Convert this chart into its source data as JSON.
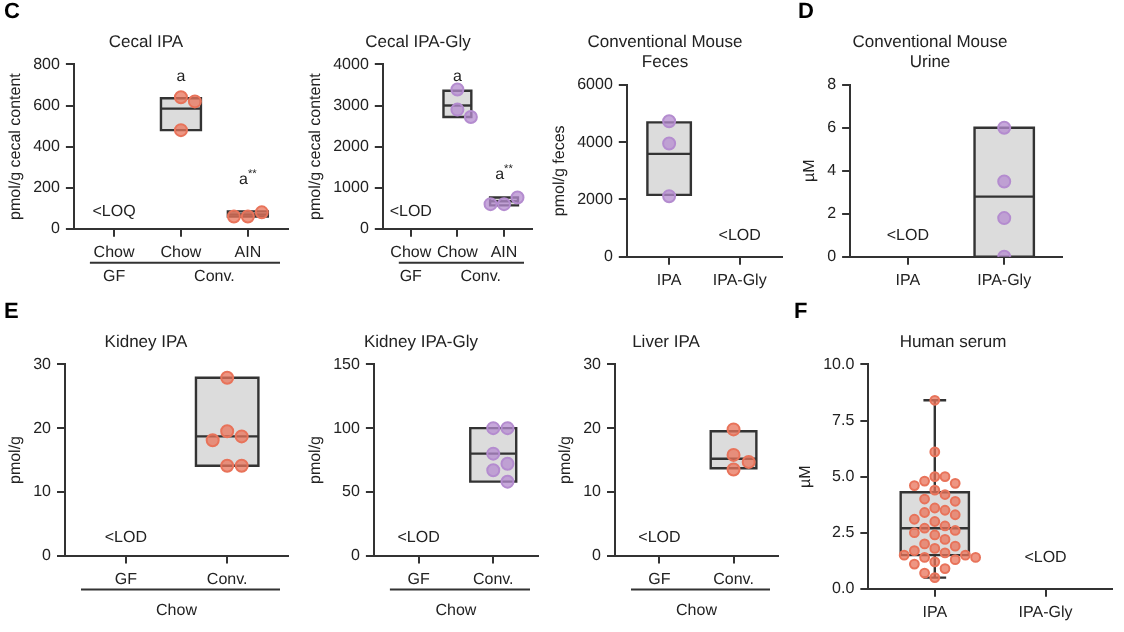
{
  "chart_data": [
    {
      "type": "box",
      "title": "Cecal IPA",
      "ylabel": "pmol/g cecal content",
      "categories": [
        "Chow",
        "Chow",
        "AIN"
      ],
      "ylim": [
        0,
        800
      ],
      "yticks": [
        0,
        200,
        400,
        600,
        800
      ],
      "marker": "circle",
      "boxes": [
        null,
        {
          "low": 480,
          "q1": 480,
          "median": 585,
          "q3": 635,
          "high": 635
        },
        {
          "low": 60,
          "q1": 60,
          "median": 70,
          "q3": 85,
          "high": 85
        }
      ],
      "series": [
        {
          "type": "scatter",
          "color": "#e8735a",
          "values": [
            null,
            640,
            60
          ]
        },
        {
          "type": "scatter",
          "color": "#e8735a",
          "values": [
            null,
            620,
            80
          ]
        },
        {
          "type": "scatter",
          "color": "#e8735a",
          "values": [
            null,
            480,
            60
          ]
        }
      ],
      "annotations": [
        "C",
        "GF",
        "Conv.",
        "a",
        "a$^{**}$",
        "<LOQ"
      ]
    },
    {
      "type": "box",
      "title": "Cecal IPA-Gly",
      "ylabel": "pmol/g cecal content",
      "categories": [
        "Chow",
        "Chow",
        "AIN"
      ],
      "ylim": [
        0,
        4000
      ],
      "yticks": [
        0,
        1000,
        2000,
        3000,
        4000
      ],
      "marker": "circle",
      "boxes": [
        null,
        {
          "low": 2720,
          "q1": 2720,
          "median": 3000,
          "q3": 3360,
          "high": 3360
        },
        {
          "low": 570,
          "q1": 570,
          "median": 670,
          "q3": 760,
          "high": 760
        }
      ],
      "series": [
        {
          "type": "scatter",
          "color": "#b48ccf",
          "values": [
            null,
            3390,
            600
          ]
        },
        {
          "type": "scatter",
          "color": "#b48ccf",
          "values": [
            null,
            2900,
            760
          ]
        },
        {
          "type": "scatter",
          "color": "#b48ccf",
          "values": [
            null,
            2720,
            600
          ]
        }
      ],
      "annotations": [
        "GF",
        "Conv.",
        "a",
        "a$^{**}$",
        "<LOD"
      ]
    },
    {
      "type": "box",
      "title": "Conventional Mouse Feces",
      "ylabel": "pmol/g feces",
      "categories": [
        "IPA",
        "IPA-Gly"
      ],
      "ylim": [
        0,
        6000
      ],
      "yticks": [
        0,
        2000,
        4000,
        6000
      ],
      "marker": "circle",
      "boxes": [
        {
          "low": 2160,
          "q1": 2160,
          "median": 3590,
          "q3": 4690,
          "high": 4690
        },
        null
      ],
      "series": [
        {
          "type": "scatter",
          "color": "#b48ccf",
          "x": [
            "IPA",
            "IPA",
            "IPA"
          ],
          "values": [
            4730,
            3950,
            2110
          ]
        }
      ],
      "annotations": [
        "<LOD"
      ]
    },
    {
      "type": "box",
      "title": "Conventional Mouse Urine",
      "ylabel": "µM",
      "categories": [
        "IPA",
        "IPA-Gly"
      ],
      "ylim": [
        0,
        8
      ],
      "yticks": [
        0,
        2,
        4,
        6,
        8
      ],
      "marker": "circle",
      "boxes": [
        null,
        {
          "low": 0,
          "q1": 0,
          "median": 2.8,
          "q3": 6.0,
          "high": 6.0
        }
      ],
      "series": [
        {
          "type": "scatter",
          "color": "#b48ccf",
          "x": [
            "IPA-Gly",
            "IPA-Gly",
            "IPA-Gly",
            "IPA-Gly"
          ],
          "values": [
            6.0,
            3.5,
            1.8,
            0.0
          ]
        }
      ],
      "annotations": [
        "D",
        "<LOD"
      ]
    },
    {
      "type": "box",
      "title": "Kidney IPA",
      "ylabel": "pmol/g",
      "xlabel": "Chow",
      "categories": [
        "GF",
        "Conv."
      ],
      "ylim": [
        0,
        30
      ],
      "yticks": [
        0,
        10,
        20,
        30
      ],
      "marker": "circle",
      "boxes": [
        null,
        {
          "low": 14.1,
          "q1": 14.1,
          "median": 18.7,
          "q3": 27.9,
          "high": 27.9
        }
      ],
      "series": [
        {
          "type": "scatter",
          "color": "#e8735a",
          "x": [
            "Conv.",
            "Conv.",
            "Conv.",
            "Conv.",
            "Conv.",
            "Conv."
          ],
          "values": [
            27.9,
            19.5,
            18.7,
            18.1,
            14.1,
            14.1
          ]
        }
      ],
      "annotations": [
        "E",
        "<LOD"
      ]
    },
    {
      "type": "box",
      "title": "Kidney IPA-Gly",
      "ylabel": "pmol/g",
      "xlabel": "Chow",
      "categories": [
        "GF",
        "Conv."
      ],
      "ylim": [
        0,
        150
      ],
      "yticks": [
        0,
        50,
        100,
        150
      ],
      "marker": "circle",
      "boxes": [
        null,
        {
          "low": 58,
          "q1": 58,
          "median": 80,
          "q3": 100,
          "high": 100
        }
      ],
      "series": [
        {
          "type": "scatter",
          "color": "#b48ccf",
          "x": [
            "Conv.",
            "Conv.",
            "Conv.",
            "Conv.",
            "Conv.",
            "Conv."
          ],
          "values": [
            100,
            100,
            80,
            72,
            67,
            58
          ]
        }
      ],
      "annotations": [
        "<LOD"
      ]
    },
    {
      "type": "box",
      "title": "Liver IPA",
      "ylabel": "pmol/g",
      "xlabel": "Chow",
      "categories": [
        "GF",
        "Conv."
      ],
      "ylim": [
        0,
        30
      ],
      "yticks": [
        0,
        10,
        20,
        30
      ],
      "marker": "circle",
      "boxes": [
        null,
        {
          "low": 13.7,
          "q1": 13.7,
          "median": 15.2,
          "q3": 19.5,
          "high": 19.5
        }
      ],
      "series": [
        {
          "type": "scatter",
          "color": "#e8735a",
          "x": [
            "Conv.",
            "Conv.",
            "Conv.",
            "Conv."
          ],
          "values": [
            19.8,
            15.8,
            14.7,
            13.5
          ]
        }
      ],
      "annotations": [
        "<LOD"
      ]
    },
    {
      "type": "box",
      "title": "Human serum",
      "ylabel": "µM",
      "categories": [
        "IPA",
        "IPA-Gly"
      ],
      "ylim": [
        0,
        10
      ],
      "yticks": [
        {
          "value": 0,
          "label": "0.0"
        },
        {
          "value": 2.5,
          "label": "2.5"
        },
        {
          "value": 5,
          "label": "5.0"
        },
        {
          "value": 7.5,
          "label": "7.5"
        },
        {
          "value": 10,
          "label": "10.0"
        }
      ],
      "marker": "circle",
      "boxes": [
        {
          "low": 0.5,
          "q1": 1.5,
          "median": 2.7,
          "q3": 4.3,
          "high": 8.4
        },
        null
      ],
      "series": [
        {
          "type": "scatter",
          "color": "#e8735a",
          "x": [
            "IPA",
            "IPA",
            "IPA",
            "IPA",
            "IPA",
            "IPA",
            "IPA",
            "IPA",
            "IPA",
            "IPA",
            "IPA",
            "IPA",
            "IPA",
            "IPA",
            "IPA",
            "IPA",
            "IPA",
            "IPA",
            "IPA",
            "IPA",
            "IPA",
            "IPA",
            "IPA",
            "IPA",
            "IPA",
            "IPA",
            "IPA",
            "IPA",
            "IPA",
            "IPA",
            "IPA",
            "IPA",
            "IPA",
            "IPA",
            "IPA",
            "IPA",
            "IPA",
            "IPA"
          ],
          "values": [
            8.4,
            6.1,
            5.0,
            5.0,
            4.8,
            4.7,
            4.6,
            4.4,
            4.2,
            4.0,
            3.9,
            3.6,
            3.5,
            3.4,
            3.3,
            3.1,
            3.0,
            2.8,
            2.7,
            2.6,
            2.5,
            2.4,
            2.2,
            2.0,
            1.9,
            1.8,
            1.7,
            1.6,
            1.5,
            1.5,
            1.4,
            1.4,
            1.3,
            1.2,
            1.1,
            0.9,
            0.7,
            0.5
          ]
        }
      ],
      "annotations": [
        "F",
        "<LOD"
      ]
    }
  ]
}
